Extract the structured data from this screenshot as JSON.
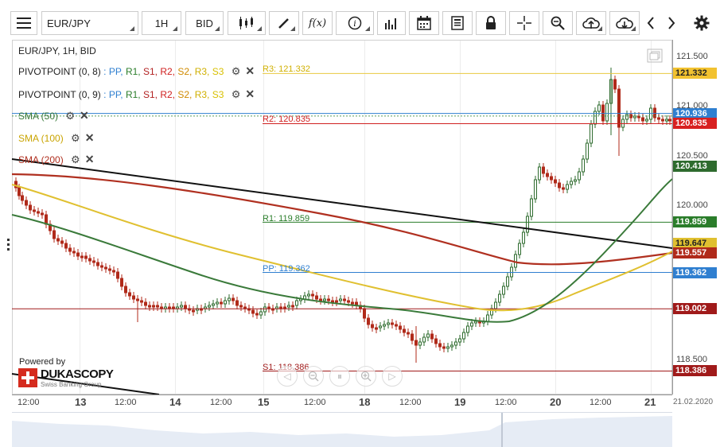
{
  "toolbar": {
    "symbol": "EUR/JPY",
    "timeframe": "1H",
    "price_side": "BID",
    "fx_label": "f(x)",
    "info_label": "i"
  },
  "legend": {
    "title": "EUR/JPY, 1H, BID",
    "pivot1_label": "PIVOTPOINT (0, 8)",
    "pivot2_label": "PIVOTPOINT (0, 9)",
    "pivot_items": [
      {
        "text": ": PP,",
        "color": "#2f7fd0"
      },
      {
        "text": "R1,",
        "color": "#2a7d2a"
      },
      {
        "text": "S1,",
        "color": "#b22222"
      },
      {
        "text": "R2,",
        "color": "#d02020"
      },
      {
        "text": "S2,",
        "color": "#d08a00"
      },
      {
        "text": "R3,",
        "color": "#d0b000"
      },
      {
        "text": "S3",
        "color": "#d8c000"
      }
    ],
    "sma50": "SMA (50)",
    "sma100": "SMA (100)",
    "sma200": "SMA (200)"
  },
  "pivot_lines": {
    "r3": "R3: 121.332",
    "r2": "R2: 120.835",
    "r1": "R1: 119.859",
    "pp": "PP: 119.362",
    "s1": "S1: 118.386"
  },
  "price_axis": {
    "ticks": [
      "121.500",
      "121.000",
      "120.500",
      "120.000",
      "118.500"
    ],
    "tags": [
      {
        "value": "121.332",
        "bg": "#f2c230",
        "fg": "#222"
      },
      {
        "value": "120.936",
        "bg": "#2f7fd0",
        "fg": "#fff"
      },
      {
        "value": "120.835",
        "bg": "#d82020",
        "fg": "#fff"
      },
      {
        "value": "120.413",
        "bg": "#2e6b2e",
        "fg": "#fff"
      },
      {
        "value": "119.859",
        "bg": "#2a7d2a",
        "fg": "#fff"
      },
      {
        "value": "119.647",
        "bg": "#e0c030",
        "fg": "#222"
      },
      {
        "value": "119.557",
        "bg": "#b02a1a",
        "fg": "#fff"
      },
      {
        "value": "119.362",
        "bg": "#2f7fd0",
        "fg": "#fff"
      },
      {
        "value": "119.002",
        "bg": "#a01a1a",
        "fg": "#fff"
      },
      {
        "value": "118.386",
        "bg": "#a01a1a",
        "fg": "#fff"
      }
    ]
  },
  "time_axis": {
    "labels": [
      {
        "text": "12:00",
        "bold": false
      },
      {
        "text": "13",
        "bold": true
      },
      {
        "text": "12:00",
        "bold": false
      },
      {
        "text": "14",
        "bold": true
      },
      {
        "text": "12:00",
        "bold": false
      },
      {
        "text": "15",
        "bold": true
      },
      {
        "text": "12:00",
        "bold": false
      },
      {
        "text": "18",
        "bold": true
      },
      {
        "text": "12:00",
        "bold": false
      },
      {
        "text": "19",
        "bold": true
      },
      {
        "text": "12:00",
        "bold": false
      },
      {
        "text": "20",
        "bold": true
      },
      {
        "text": "12:00",
        "bold": false
      },
      {
        "text": "21",
        "bold": true
      },
      {
        "text": "21.02.2020",
        "bold": false
      }
    ]
  },
  "branding": {
    "powered_by": "Powered by",
    "name": "DUKASCOPY",
    "tagline": "Swiss Banking Group"
  },
  "colors": {
    "sma50": "#3a7a3a",
    "sma100": "#e0c030",
    "sma200": "#b03020",
    "trend": "#111111",
    "candle_up": "#2e6b2e",
    "candle_down": "#b02a1a"
  }
}
